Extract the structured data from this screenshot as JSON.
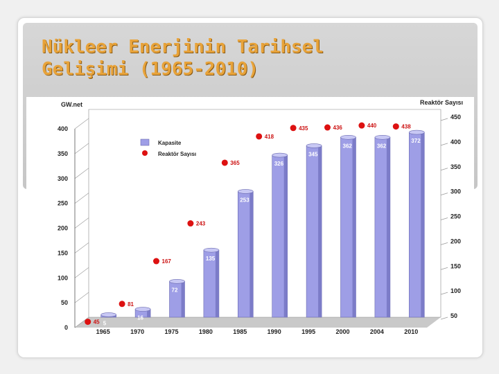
{
  "slide": {
    "title_line1": "Nükleer Enerjinin Tarihsel",
    "title_line2": "Gelişimi (1965-2010)"
  },
  "colors": {
    "title": "#e8a33a",
    "bar": "#9e9ee6",
    "bar_top": "#c8c8f4",
    "marker": "#dd1111",
    "marker_label": "#cc1111"
  },
  "chart_data": {
    "type": "bar",
    "title": "",
    "categories": [
      "1965",
      "1970",
      "1975",
      "1980",
      "1985",
      "1990",
      "1995",
      "2000",
      "2004",
      "2010"
    ],
    "left_axis": {
      "label": "GW.net",
      "min": 0,
      "max": 400,
      "ticks": [
        0,
        50,
        100,
        150,
        200,
        250,
        300,
        350,
        400
      ]
    },
    "right_axis": {
      "label": "Reaktör Sayısı",
      "min": 50,
      "max": 450,
      "ticks": [
        50,
        100,
        150,
        200,
        250,
        300,
        350,
        400,
        450
      ]
    },
    "series": [
      {
        "name": "Kapasite",
        "type": "bar",
        "axis": "left",
        "values": [
          5,
          16,
          72,
          135,
          253,
          326,
          345,
          362,
          362,
          372
        ]
      },
      {
        "name": "Reaktör Sayısı",
        "type": "marker",
        "axis": "right",
        "values": [
          45,
          81,
          167,
          243,
          365,
          418,
          435,
          436,
          440,
          438
        ]
      }
    ],
    "legend": {
      "position": "top-left",
      "items": [
        "Kapasite",
        "Reaktör Sayısı"
      ]
    },
    "grid": false
  }
}
